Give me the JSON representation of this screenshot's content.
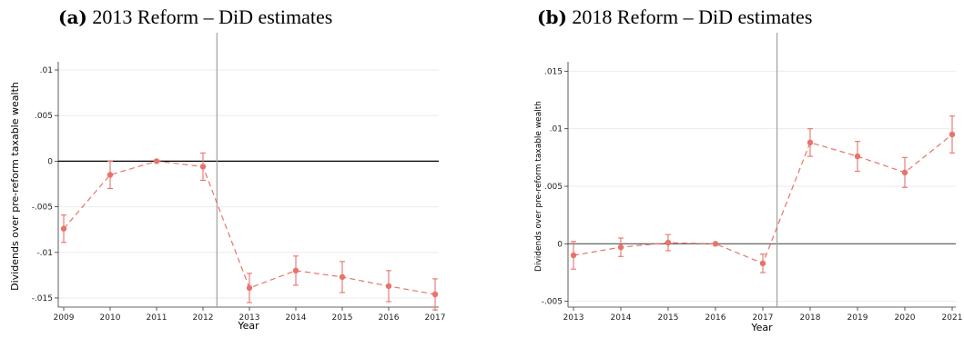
{
  "chart_data": [
    {
      "type": "line",
      "panel_label": "(a)",
      "title": "2013 Reform – DiD estimates",
      "xlabel": "Year",
      "ylabel": "Dividends over pre-reform taxable wealth",
      "x": [
        2009,
        2010,
        2011,
        2012,
        2013,
        2014,
        2015,
        2016,
        2017
      ],
      "x_tick_labels": [
        "2009",
        "2010",
        "2011",
        "2012",
        "2013",
        "2014",
        "2015",
        "2016",
        "2017"
      ],
      "y_ticks": [
        -0.015,
        -0.01,
        -0.005,
        0,
        0.005,
        0.01
      ],
      "y_tick_labels": [
        "-.015",
        "-.01",
        "-.005",
        "0",
        ".005",
        ".01"
      ],
      "ylim": [
        -0.016,
        0.0105
      ],
      "series": [
        {
          "values": [
            -0.0074,
            -0.0015,
            0.0,
            -0.0006,
            -0.0139,
            -0.012,
            -0.0127,
            -0.0137,
            -0.0146
          ],
          "ci_low": [
            -0.0089,
            -0.003,
            0.0,
            -0.0021,
            -0.0155,
            -0.0136,
            -0.0144,
            -0.0154,
            -0.0163
          ],
          "ci_high": [
            -0.0059,
            0.0,
            0.0,
            0.0009,
            -0.0123,
            -0.0104,
            -0.011,
            -0.012,
            -0.0129
          ]
        }
      ],
      "reform_line_x": 2012.3,
      "zero_line": 0,
      "grid": true,
      "colors": {
        "series": "#e8736b",
        "zero_line": "#000000",
        "reform_line": "#a0a0a0",
        "grid": "#ebebeb"
      }
    },
    {
      "type": "line",
      "panel_label": "(b)",
      "title": "2018 Reform – DiD estimates",
      "xlabel": "Year",
      "ylabel": "Dividends over pre-reform taxable wealth",
      "x": [
        2013,
        2014,
        2015,
        2016,
        2017,
        2018,
        2019,
        2020,
        2021
      ],
      "x_tick_labels": [
        "2013",
        "2014",
        "2015",
        "2016",
        "2017",
        "2018",
        "2019",
        "2020",
        "2021"
      ],
      "y_ticks": [
        -0.005,
        0,
        0.005,
        0.01,
        0.015
      ],
      "y_tick_labels": [
        "-.005",
        "0",
        ".005",
        ".01",
        ".015"
      ],
      "ylim": [
        -0.0055,
        0.0155
      ],
      "series": [
        {
          "values": [
            -0.001,
            -0.0003,
            0.0001,
            0.0,
            -0.0017,
            0.0088,
            0.0076,
            0.0062,
            0.0095
          ],
          "ci_low": [
            -0.0022,
            -0.0011,
            -0.0006,
            0.0,
            -0.0025,
            0.0076,
            0.0063,
            0.0049,
            0.0079
          ],
          "ci_high": [
            0.0002,
            0.0005,
            0.0008,
            0.0,
            -0.0009,
            0.01,
            0.0089,
            0.0075,
            0.0111
          ]
        }
      ],
      "reform_line_x": 2017.3,
      "zero_line": 0,
      "grid": true,
      "colors": {
        "series": "#e8736b",
        "zero_line": "#555555",
        "reform_line": "#a0a0a0",
        "grid": "#ebebeb"
      }
    }
  ]
}
